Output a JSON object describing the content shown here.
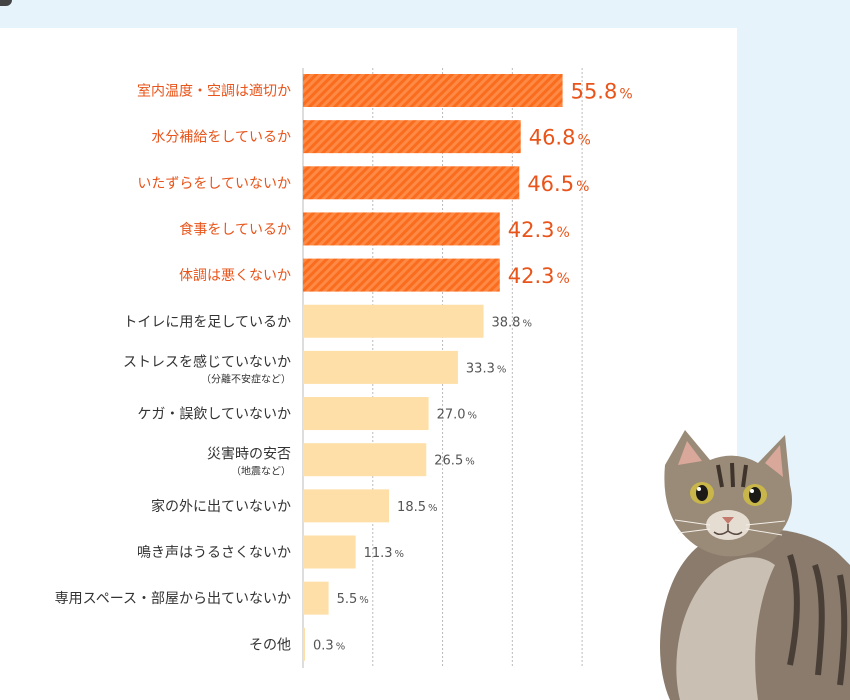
{
  "chart_data": {
    "type": "bar",
    "orientation": "horizontal",
    "unit": "%",
    "xlim": [
      0,
      60
    ],
    "grid": true,
    "categories": [
      {
        "label": "室内温度・空調は適切か",
        "sub": "",
        "value": 55.8,
        "highlight": true
      },
      {
        "label": "水分補給をしているか",
        "sub": "",
        "value": 46.8,
        "highlight": true
      },
      {
        "label": "いたずらをしていないか",
        "sub": "",
        "value": 46.5,
        "highlight": true
      },
      {
        "label": "食事をしているか",
        "sub": "",
        "value": 42.3,
        "highlight": true
      },
      {
        "label": "体調は悪くないか",
        "sub": "",
        "value": 42.3,
        "highlight": true
      },
      {
        "label": "トイレに用を足しているか",
        "sub": "",
        "value": 38.8,
        "highlight": false
      },
      {
        "label": "ストレスを感じていないか",
        "sub": "（分離不安症など）",
        "value": 33.3,
        "highlight": false
      },
      {
        "label": "ケガ・誤飲していないか",
        "sub": "",
        "value": 27.0,
        "highlight": false
      },
      {
        "label": "災害時の安否",
        "sub": "（地震など）",
        "value": 26.5,
        "highlight": false
      },
      {
        "label": "家の外に出ていないか",
        "sub": "",
        "value": 18.5,
        "highlight": false
      },
      {
        "label": "鳴き声はうるさくないか",
        "sub": "",
        "value": 11.3,
        "highlight": false
      },
      {
        "label": "専用スペース・部屋から出ていないか",
        "sub": "",
        "value": 5.5,
        "highlight": false
      },
      {
        "label": "その他",
        "sub": "",
        "value": 0.3,
        "highlight": false
      }
    ]
  },
  "colors": {
    "highlight_bar": "#fa6c1e",
    "highlight_stripe": "#ff8a45",
    "normal_bar": "#fedfa7",
    "highlight_text": "#e8541a",
    "grid": "#bbbbbb"
  },
  "decorations": {
    "cat_illustration": "tabby-cat-looking-up"
  }
}
